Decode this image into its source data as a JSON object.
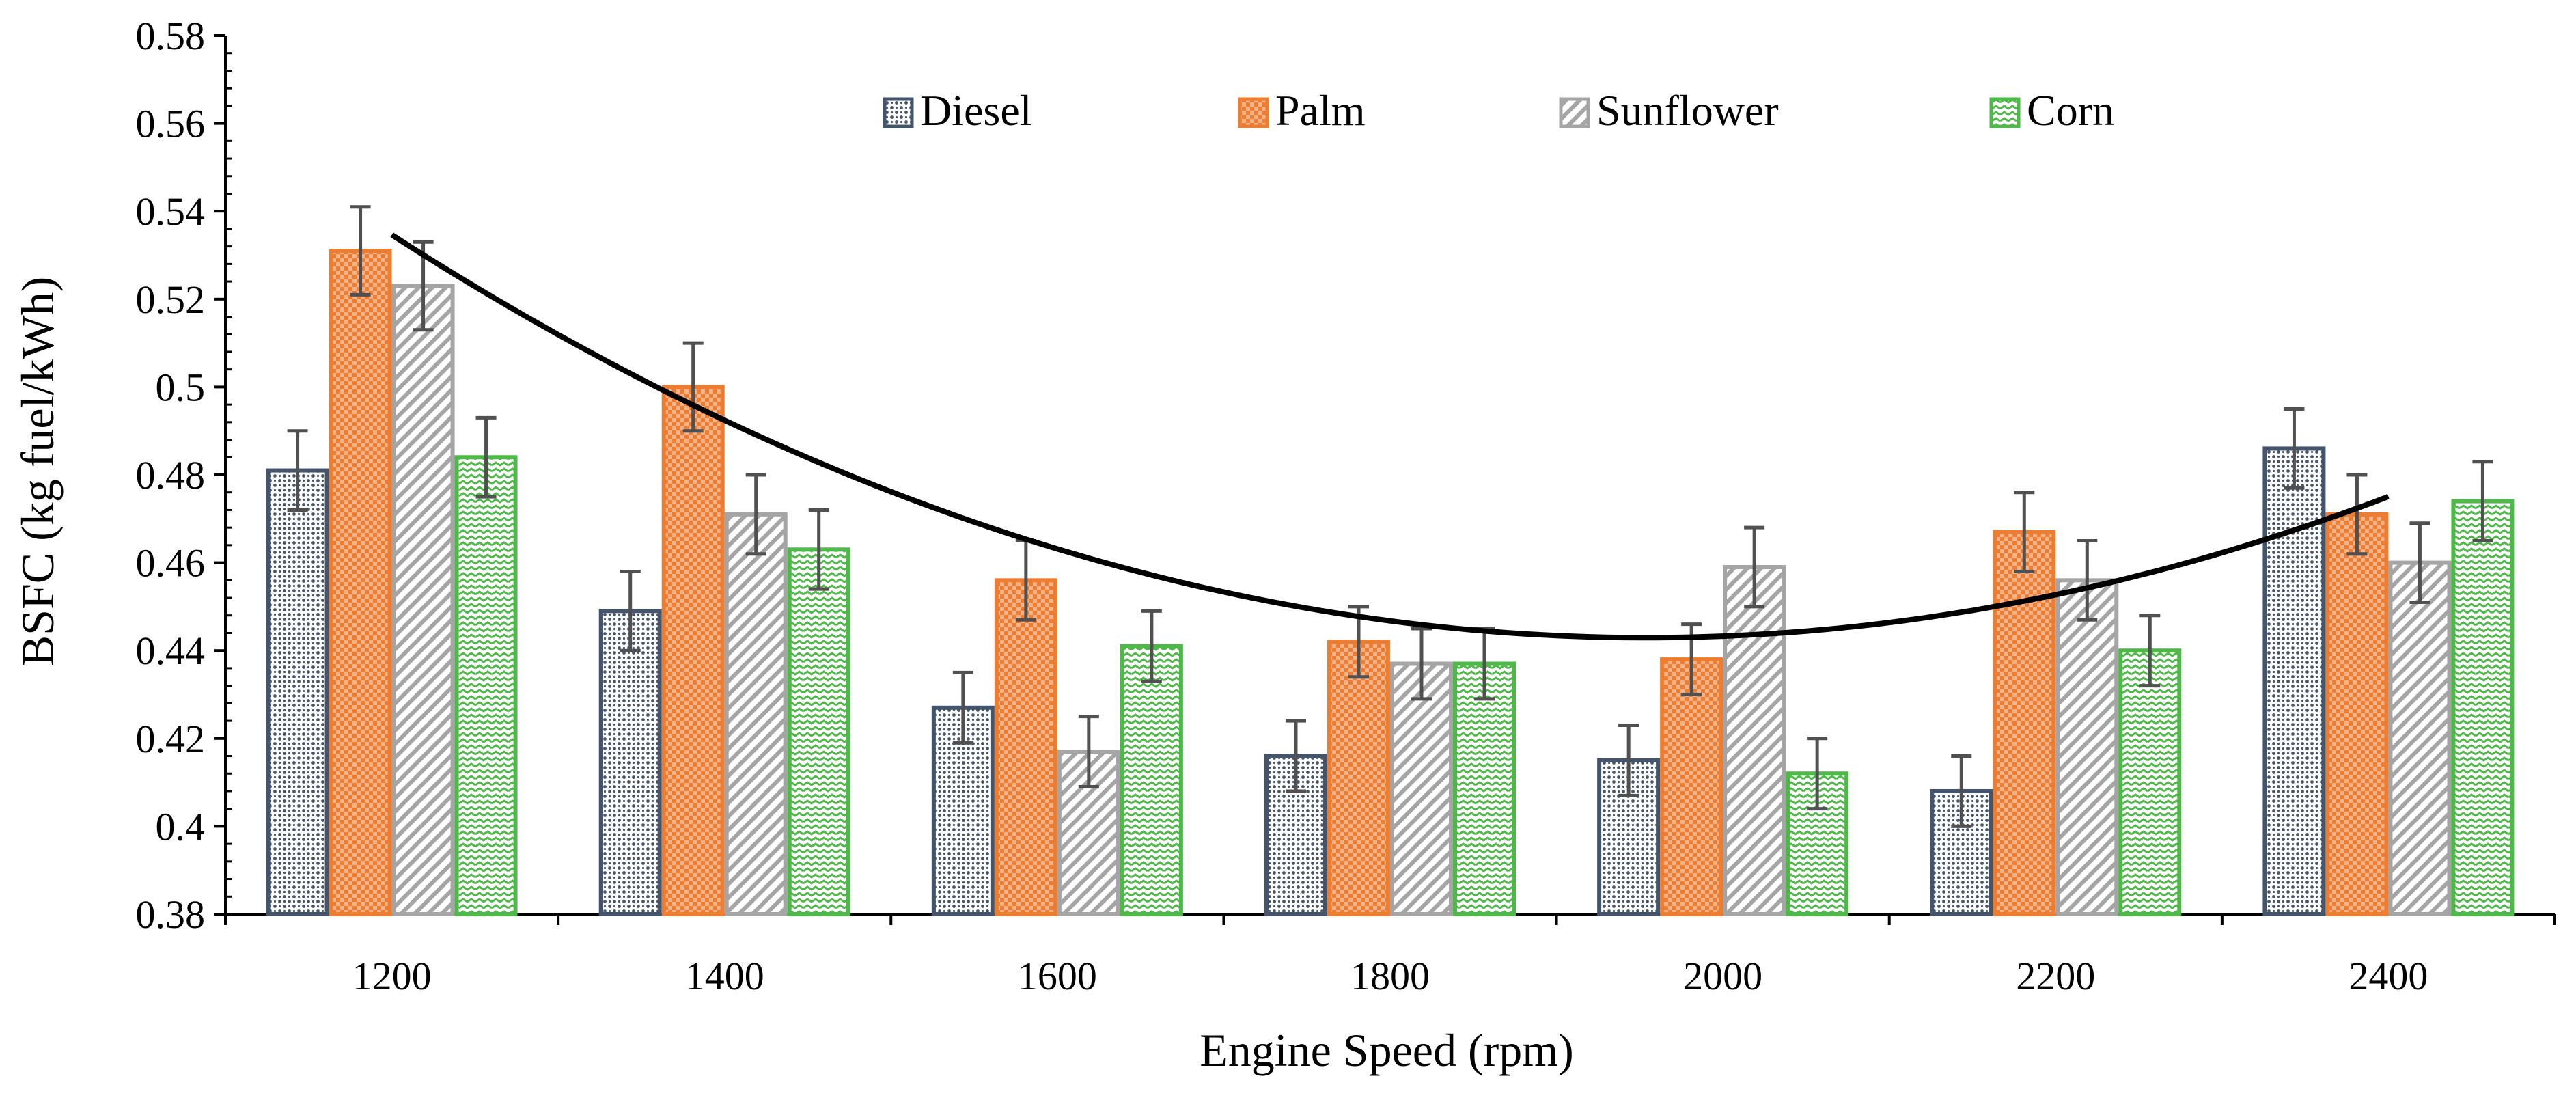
{
  "chart_data": {
    "type": "bar",
    "title": "",
    "xlabel": "Engine Speed (rpm)",
    "ylabel": "BSFC (kg fuel/kWh)",
    "ylim": [
      0.38,
      0.58
    ],
    "yticks": [
      "0.38",
      "0.4",
      "0.42",
      "0.44",
      "0.46",
      "0.48",
      "0.5",
      "0.52",
      "0.54",
      "0.56",
      "0.58"
    ],
    "ytick_values": [
      0.38,
      0.4,
      0.42,
      0.44,
      0.46,
      0.48,
      0.5,
      0.52,
      0.54,
      0.56,
      0.58
    ],
    "categories": [
      "1200",
      "1400",
      "1600",
      "1800",
      "2000",
      "2200",
      "2400"
    ],
    "legend_position": "top",
    "series": [
      {
        "name": "Diesel",
        "color": "#44546a",
        "pattern": "dots",
        "values": [
          0.481,
          0.449,
          0.427,
          0.416,
          0.415,
          0.408,
          0.486
        ],
        "errors": [
          0.009,
          0.009,
          0.008,
          0.008,
          0.008,
          0.008,
          0.009
        ]
      },
      {
        "name": "Palm",
        "color": "#ed7d31",
        "pattern": "checker",
        "values": [
          0.531,
          0.5,
          0.456,
          0.442,
          0.438,
          0.467,
          0.471
        ],
        "errors": [
          0.01,
          0.01,
          0.009,
          0.008,
          0.008,
          0.009,
          0.009
        ]
      },
      {
        "name": "Sunflower",
        "color": "#a5a5a5",
        "pattern": "diagonal",
        "values": [
          0.523,
          0.471,
          0.417,
          0.437,
          0.459,
          0.456,
          0.46
        ],
        "errors": [
          0.01,
          0.009,
          0.008,
          0.008,
          0.009,
          0.009,
          0.009
        ]
      },
      {
        "name": "Corn",
        "color": "#4eb848",
        "pattern": "wave",
        "values": [
          0.484,
          0.463,
          0.441,
          0.437,
          0.412,
          0.44,
          0.474
        ],
        "errors": [
          0.009,
          0.009,
          0.008,
          0.008,
          0.008,
          0.008,
          0.009
        ]
      }
    ],
    "trendline": {
      "type": "polynomial",
      "color": "#000000",
      "points": [
        {
          "x": 1200,
          "y": 0.534
        },
        {
          "x": 1400,
          "y": 0.492
        },
        {
          "x": 1600,
          "y": 0.465
        },
        {
          "x": 1800,
          "y": 0.448
        },
        {
          "x": 2000,
          "y": 0.442
        },
        {
          "x": 2200,
          "y": 0.45
        },
        {
          "x": 2400,
          "y": 0.477
        }
      ]
    }
  }
}
